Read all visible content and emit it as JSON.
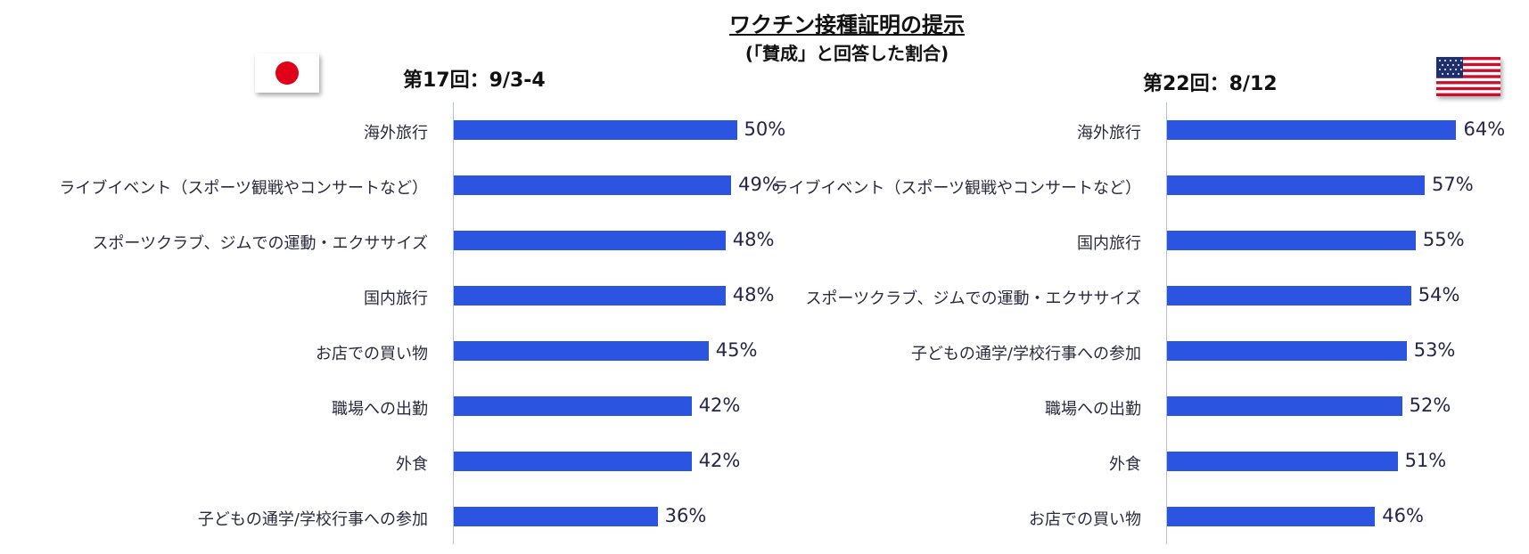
{
  "header": {
    "title": "ワクチン接種証明の提示",
    "subtitle": "(「賛成」と回答した割合)"
  },
  "colors": {
    "bar": "#2b55e0"
  },
  "flags": {
    "left": "japan-flag",
    "right": "usa-flag"
  },
  "chart_data": [
    {
      "type": "bar",
      "orientation": "horizontal",
      "title": "第17回：9/3-4",
      "value_suffix": "%",
      "xlim": [
        0,
        100
      ],
      "grid": false,
      "categories": [
        "海外旅行",
        "ライブイベント（スポーツ観戦やコンサートなど）",
        "スポーツクラブ、ジムでの運動・エクササイズ",
        "国内旅行",
        "お店での買い物",
        "職場への出勤",
        "外食",
        "子どもの通学/学校行事への参加"
      ],
      "values": [
        50,
        49,
        48,
        48,
        45,
        42,
        42,
        36
      ]
    },
    {
      "type": "bar",
      "orientation": "horizontal",
      "title": "第22回：8/12",
      "value_suffix": "%",
      "xlim": [
        0,
        100
      ],
      "grid": false,
      "categories": [
        "海外旅行",
        "ライブイベント（スポーツ観戦やコンサートなど）",
        "国内旅行",
        "スポーツクラブ、ジムでの運動・エクササイズ",
        "子どもの通学/学校行事への参加",
        "職場への出勤",
        "外食",
        "お店での買い物"
      ],
      "values": [
        64,
        57,
        55,
        54,
        53,
        52,
        51,
        46
      ]
    }
  ]
}
